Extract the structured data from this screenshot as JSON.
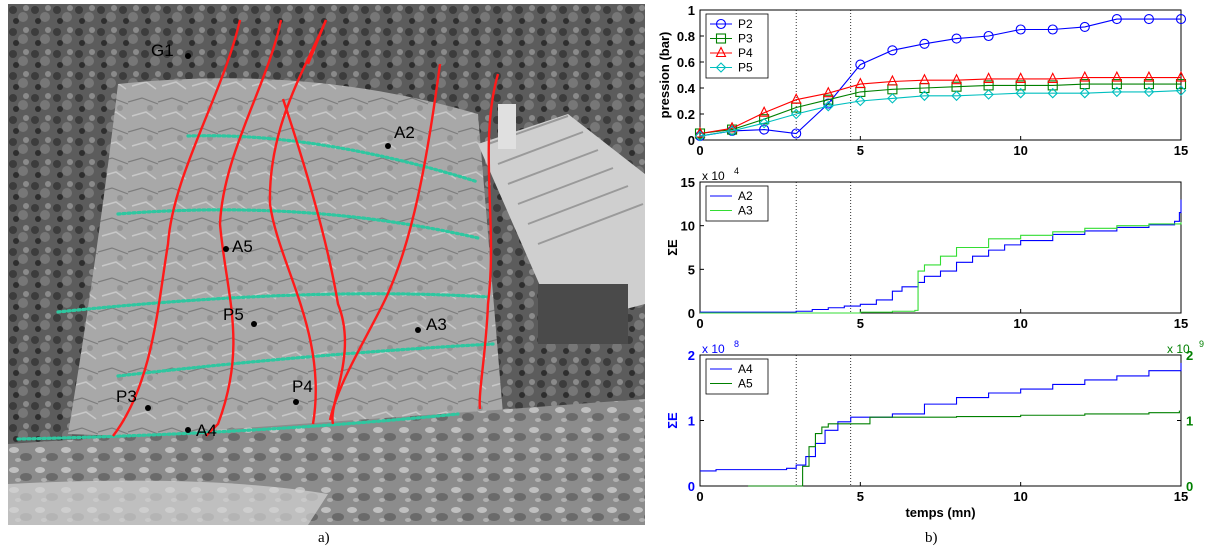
{
  "photo": {
    "labels": {
      "g1": "G1",
      "a2": "A2",
      "a5": "A5",
      "p5": "P5",
      "a3": "A3",
      "p3": "P3",
      "p4": "P4",
      "a4": "A4"
    },
    "fracture_color": "#ff1a1a",
    "strata_color": "#2ec7a0"
  },
  "captions": {
    "a": "a)",
    "b": "b)"
  },
  "chart_data": [
    {
      "type": "line",
      "ylabel": "pression (bar)",
      "xlim": [
        0,
        15
      ],
      "ylim": [
        0,
        1
      ],
      "yticks": [
        "0",
        "0.2",
        "0.4",
        "0.6",
        "0.8",
        "1"
      ],
      "xticks": [
        "0",
        "5",
        "10",
        "15"
      ],
      "legend_position": "top-left",
      "series": [
        {
          "name": "P2",
          "color": "#0000ff",
          "marker": "circle",
          "x": [
            0,
            1,
            2,
            3,
            4,
            5,
            6,
            7,
            8,
            9,
            10,
            11,
            12,
            13,
            14,
            15
          ],
          "y": [
            0.03,
            0.07,
            0.08,
            0.05,
            0.28,
            0.58,
            0.69,
            0.74,
            0.78,
            0.8,
            0.85,
            0.85,
            0.87,
            0.93,
            0.93,
            0.93
          ]
        },
        {
          "name": "P3",
          "color": "#008000",
          "marker": "square",
          "x": [
            0,
            1,
            2,
            3,
            4,
            5,
            6,
            7,
            8,
            9,
            10,
            11,
            12,
            13,
            14,
            15
          ],
          "y": [
            0.05,
            0.08,
            0.16,
            0.25,
            0.31,
            0.37,
            0.39,
            0.4,
            0.41,
            0.42,
            0.42,
            0.42,
            0.43,
            0.43,
            0.43,
            0.43
          ]
        },
        {
          "name": "P4",
          "color": "#ff0000",
          "marker": "triangle",
          "x": [
            0,
            1,
            2,
            3,
            4,
            5,
            6,
            7,
            8,
            9,
            10,
            11,
            12,
            13,
            14,
            15
          ],
          "y": [
            0.05,
            0.09,
            0.21,
            0.31,
            0.36,
            0.43,
            0.45,
            0.46,
            0.46,
            0.47,
            0.47,
            0.47,
            0.48,
            0.48,
            0.48,
            0.48
          ]
        },
        {
          "name": "P5",
          "color": "#00bfbf",
          "marker": "diamond",
          "x": [
            0,
            1,
            2,
            3,
            4,
            5,
            6,
            7,
            8,
            9,
            10,
            11,
            12,
            13,
            14,
            15
          ],
          "y": [
            0.03,
            0.07,
            0.13,
            0.2,
            0.26,
            0.3,
            0.32,
            0.34,
            0.34,
            0.35,
            0.36,
            0.36,
            0.36,
            0.37,
            0.37,
            0.38
          ]
        }
      ]
    },
    {
      "type": "line",
      "ylabel": "ΣE",
      "exponent": "x 10",
      "exponent_power": "4",
      "xlim": [
        0,
        15
      ],
      "ylim": [
        0,
        15
      ],
      "yticks": [
        "0",
        "5",
        "10",
        "15"
      ],
      "xticks": [
        "0",
        "5",
        "10",
        "15"
      ],
      "legend_position": "top-left",
      "series": [
        {
          "name": "A2",
          "color": "#0000ff",
          "step": true,
          "x": [
            0,
            3,
            3.5,
            4,
            4.5,
            5,
            5.5,
            6,
            6.3,
            6.8,
            7,
            7.5,
            8,
            8.5,
            9,
            9.5,
            10,
            11,
            12,
            13,
            14,
            14.8,
            14.95,
            15
          ],
          "y": [
            0.1,
            0.2,
            0.4,
            0.6,
            0.8,
            1.0,
            1.5,
            2.5,
            3.0,
            3.5,
            4.2,
            4.8,
            5.8,
            6.5,
            7.2,
            7.8,
            8.3,
            9.0,
            9.4,
            9.8,
            10.1,
            10.5,
            11.5,
            13.0
          ]
        },
        {
          "name": "A3",
          "color": "#33dd33",
          "step": true,
          "x": [
            0,
            5,
            6,
            6.7,
            6.8,
            7,
            7.5,
            8,
            9,
            10,
            11,
            12,
            13,
            14,
            15
          ],
          "y": [
            0,
            0.1,
            0.2,
            0.3,
            4.8,
            5.5,
            6.5,
            7.5,
            8.5,
            8.9,
            9.3,
            9.7,
            10.0,
            10.2,
            10.4
          ]
        }
      ]
    },
    {
      "type": "line",
      "ylabel": "ΣE",
      "ylabel_color": "#0000ff",
      "exponent": "x 10",
      "exponent_power": "8",
      "right_exponent": "x 10",
      "right_exponent_power": "9",
      "xlabel": "temps (mn)",
      "xlim": [
        0,
        15
      ],
      "ylim": [
        0,
        2
      ],
      "y2lim": [
        0,
        2
      ],
      "yticks": [
        "0",
        "1",
        "2"
      ],
      "y2ticks": [
        "0",
        "1",
        "2"
      ],
      "xticks": [
        "0",
        "5",
        "10",
        "15"
      ],
      "left_axis_color": "#0000ff",
      "right_axis_color": "#008000",
      "legend_position": "top-left",
      "series": [
        {
          "name": "A4",
          "color": "#0000ff",
          "axis": "left",
          "step": true,
          "x": [
            0,
            0.5,
            2,
            2.7,
            3,
            3.3,
            3.6,
            3.9,
            4.3,
            4.7,
            5,
            6,
            7,
            8,
            9,
            10,
            11,
            12,
            13,
            14,
            15
          ],
          "y": [
            0.23,
            0.25,
            0.25,
            0.27,
            0.32,
            0.45,
            0.65,
            0.85,
            0.98,
            1.05,
            1.05,
            1.1,
            1.25,
            1.35,
            1.42,
            1.48,
            1.55,
            1.62,
            1.68,
            1.76,
            1.88
          ]
        },
        {
          "name": "A5",
          "color": "#008000",
          "axis": "right",
          "step": true,
          "x": [
            1.5,
            3.0,
            3.2,
            3.4,
            3.6,
            3.8,
            4.0,
            4.6,
            5.2,
            5.3,
            8,
            10,
            12,
            14,
            14.95
          ],
          "y": [
            0.0,
            0.0,
            0.3,
            0.6,
            0.8,
            0.9,
            0.95,
            0.95,
            0.95,
            1.05,
            1.06,
            1.08,
            1.1,
            1.12,
            1.15
          ]
        }
      ]
    }
  ]
}
